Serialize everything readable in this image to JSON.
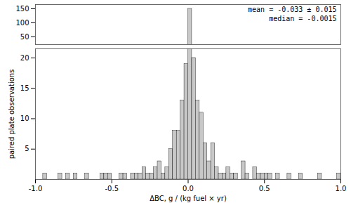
{
  "chart_data": [
    {
      "type": "histogram",
      "bins": [
        -1.0,
        -0.975,
        -0.95,
        -0.925,
        -0.9,
        -0.875,
        -0.85,
        -0.825,
        -0.8,
        -0.775,
        -0.75,
        -0.725,
        -0.7,
        -0.675,
        -0.65,
        -0.625,
        -0.6,
        -0.575,
        -0.55,
        -0.525,
        -0.5,
        -0.475,
        -0.45,
        -0.425,
        -0.4,
        -0.375,
        -0.35,
        -0.325,
        -0.3,
        -0.275,
        -0.25,
        -0.225,
        -0.2,
        -0.175,
        -0.15,
        -0.125,
        -0.1,
        -0.075,
        -0.05,
        -0.025,
        0.0,
        0.025,
        0.05,
        0.075,
        0.1,
        0.125,
        0.15,
        0.175,
        0.2,
        0.225,
        0.25,
        0.275,
        0.3,
        0.325,
        0.35,
        0.375,
        0.4,
        0.425,
        0.45,
        0.475,
        0.5,
        0.525,
        0.55,
        0.575,
        0.6,
        0.625,
        0.65,
        0.675,
        0.7,
        0.725,
        0.75,
        0.775,
        0.8,
        0.825,
        0.85,
        0.875,
        0.9,
        0.925,
        0.95,
        0.975,
        1.0
      ],
      "counts": [
        0,
        0,
        1,
        0,
        0,
        0,
        1,
        0,
        1,
        0,
        1,
        0,
        0,
        1,
        0,
        0,
        0,
        1,
        1,
        1,
        0,
        0,
        1,
        1,
        0,
        1,
        1,
        1,
        2,
        1,
        1,
        2,
        3,
        1,
        2,
        5,
        8,
        8,
        13,
        19,
        150,
        20,
        13,
        11,
        6,
        3,
        6,
        2,
        1,
        1,
        2,
        1,
        1,
        0,
        3,
        1,
        0,
        2,
        1,
        1,
        1,
        1,
        0,
        1,
        0,
        0,
        1,
        0,
        0,
        1,
        0,
        0,
        0,
        0,
        1,
        0,
        0,
        0,
        0,
        1
      ],
      "color": "#c8c8c8",
      "xlim": [
        -1.0,
        1.0
      ],
      "ylim": [
        22,
        165
      ],
      "yticks": [
        50,
        100,
        150
      ],
      "tick_labels": "y",
      "annotations": [
        "mean = -0.033 ± 0.015",
        "median = -0.0015"
      ]
    },
    {
      "type": "histogram",
      "bins": [
        -1.0,
        -0.975,
        -0.95,
        -0.925,
        -0.9,
        -0.875,
        -0.85,
        -0.825,
        -0.8,
        -0.775,
        -0.75,
        -0.725,
        -0.7,
        -0.675,
        -0.65,
        -0.625,
        -0.6,
        -0.575,
        -0.55,
        -0.525,
        -0.5,
        -0.475,
        -0.45,
        -0.425,
        -0.4,
        -0.375,
        -0.35,
        -0.325,
        -0.3,
        -0.275,
        -0.25,
        -0.225,
        -0.2,
        -0.175,
        -0.15,
        -0.125,
        -0.1,
        -0.075,
        -0.05,
        -0.025,
        0.0,
        0.025,
        0.05,
        0.075,
        0.1,
        0.125,
        0.15,
        0.175,
        0.2,
        0.225,
        0.25,
        0.275,
        0.3,
        0.325,
        0.35,
        0.375,
        0.4,
        0.425,
        0.45,
        0.475,
        0.5,
        0.525,
        0.55,
        0.575,
        0.6,
        0.625,
        0.65,
        0.675,
        0.7,
        0.725,
        0.75,
        0.775,
        0.8,
        0.825,
        0.85,
        0.875,
        0.9,
        0.925,
        0.95,
        0.975,
        1.0
      ],
      "counts": [
        0,
        0,
        1,
        0,
        0,
        0,
        1,
        0,
        1,
        0,
        1,
        0,
        0,
        1,
        0,
        0,
        0,
        1,
        1,
        1,
        0,
        0,
        1,
        1,
        0,
        1,
        1,
        1,
        2,
        1,
        1,
        2,
        3,
        1,
        2,
        5,
        8,
        8,
        13,
        19,
        150,
        20,
        13,
        11,
        6,
        3,
        6,
        2,
        1,
        1,
        2,
        1,
        1,
        0,
        3,
        1,
        0,
        2,
        1,
        1,
        1,
        1,
        0,
        1,
        0,
        0,
        1,
        0,
        0,
        1,
        0,
        0,
        0,
        0,
        1,
        0,
        0,
        0,
        0,
        1
      ],
      "color": "#c8c8c8",
      "xlim": [
        -1.0,
        1.0
      ],
      "xticks": [
        {
          "value": -1.0,
          "label": "-1.0"
        },
        -0.5,
        {
          "value": 0.0,
          "label": "0.0"
        },
        0.5,
        {
          "value": 1.0,
          "label": "1.0"
        }
      ],
      "ylim": [
        0,
        21.5
      ],
      "yticks": [
        5,
        10,
        15,
        20
      ],
      "xlabel": "ΔBC, g / (kg fuel × yr)",
      "ylabel": "paired plate observations"
    }
  ]
}
